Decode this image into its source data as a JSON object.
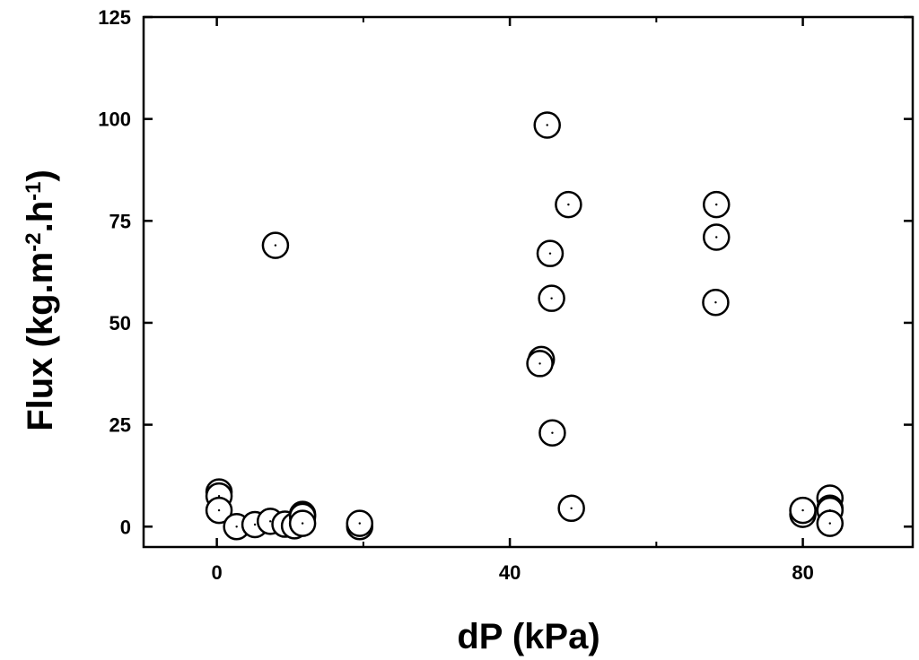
{
  "chart_data": {
    "type": "scatter",
    "xlabel": "dP (kPa)",
    "ylabel": {
      "parts": [
        {
          "text": "Flux (kg.m",
          "sup": false
        },
        {
          "text": "-2",
          "sup": true
        },
        {
          "text": ".h",
          "sup": false
        },
        {
          "text": "-1",
          "sup": true
        },
        {
          "text": ")",
          "sup": false
        }
      ]
    },
    "xlim": [
      -10,
      95
    ],
    "ylim": [
      -5,
      125
    ],
    "x_ticks": [
      0,
      40,
      80
    ],
    "x_minor_ticks": [
      20,
      60
    ],
    "y_ticks": [
      0,
      25,
      50,
      75,
      100,
      125
    ],
    "x_tick_labels": [
      "0",
      "40",
      "80"
    ],
    "y_tick_labels": [
      "0",
      "25",
      "50",
      "75",
      "100",
      "125"
    ],
    "grid": false,
    "marker": "open-circle-with-center-dot",
    "points": [
      {
        "x": 8,
        "y": 69
      },
      {
        "x": 0.3,
        "y": 8.5
      },
      {
        "x": 0.3,
        "y": 7.5
      },
      {
        "x": 0.3,
        "y": 4
      },
      {
        "x": 2.7,
        "y": 0
      },
      {
        "x": 5.2,
        "y": 0.5
      },
      {
        "x": 7.3,
        "y": 1.3
      },
      {
        "x": 9.3,
        "y": 0.6
      },
      {
        "x": 10.6,
        "y": 0.2
      },
      {
        "x": 11.7,
        "y": 3
      },
      {
        "x": 11.7,
        "y": 2.5
      },
      {
        "x": 11.7,
        "y": 0.8
      },
      {
        "x": 19.5,
        "y": 0
      },
      {
        "x": 19.5,
        "y": 0.8
      },
      {
        "x": 45.1,
        "y": 98.5
      },
      {
        "x": 48,
        "y": 79
      },
      {
        "x": 45.5,
        "y": 67
      },
      {
        "x": 45.7,
        "y": 56
      },
      {
        "x": 44.3,
        "y": 41
      },
      {
        "x": 44.1,
        "y": 40
      },
      {
        "x": 45.8,
        "y": 23
      },
      {
        "x": 48.4,
        "y": 4.5
      },
      {
        "x": 68.2,
        "y": 79
      },
      {
        "x": 68.2,
        "y": 71
      },
      {
        "x": 68.1,
        "y": 55
      },
      {
        "x": 80,
        "y": 3
      },
      {
        "x": 80,
        "y": 4
      },
      {
        "x": 83.7,
        "y": 7
      },
      {
        "x": 83.7,
        "y": 4.5
      },
      {
        "x": 83.7,
        "y": 4
      },
      {
        "x": 83.7,
        "y": 0.8
      }
    ]
  }
}
